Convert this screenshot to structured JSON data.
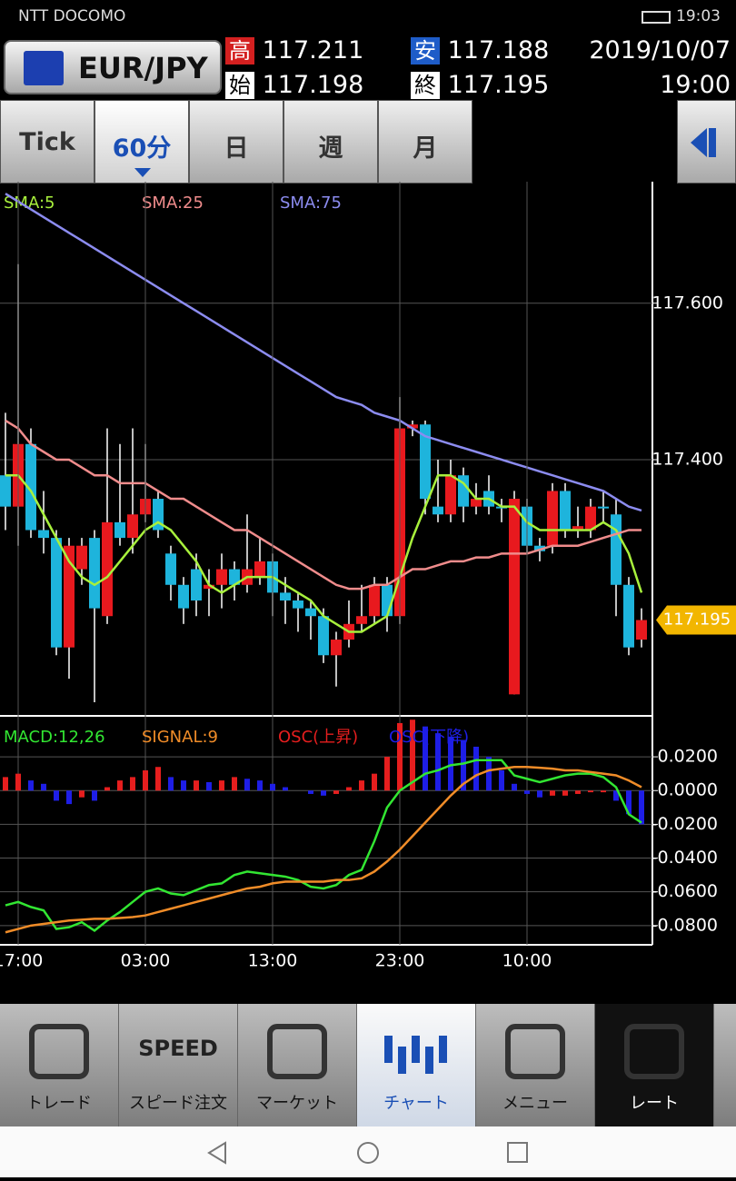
{
  "status_bar": {
    "carrier": "NTT DOCOMO",
    "time": "19:03"
  },
  "header": {
    "symbol": "EUR/JPY",
    "high_label": "高",
    "high": "117.211",
    "low_label": "安",
    "low": "117.188",
    "open_label": "始",
    "open": "117.198",
    "close_label": "終",
    "close": "117.195",
    "date": "2019/10/07",
    "time": "19:00"
  },
  "tabs": [
    {
      "label": "Tick"
    },
    {
      "label": "60分",
      "active": true
    },
    {
      "label": "日"
    },
    {
      "label": "週"
    },
    {
      "label": "月"
    }
  ],
  "chart_data": [
    {
      "type": "candlestick",
      "up_color": "#e8191e",
      "down_color": "#1eb4dc",
      "ylim": [
        117.076,
        117.753
      ],
      "yticks": [
        {
          "value": 117.6,
          "label": "117.600"
        },
        {
          "value": 117.4,
          "label": "117.400"
        }
      ],
      "current_price": 117.195,
      "current_price_label": "117.195",
      "open": [
        117.38,
        117.34,
        117.42,
        117.31,
        117.3,
        117.16,
        117.26,
        117.3,
        117.2,
        117.32,
        117.3,
        117.33,
        117.35,
        117.28,
        117.24,
        117.26,
        117.235,
        117.24,
        117.26,
        117.24,
        117.25,
        117.27,
        117.23,
        117.22,
        117.21,
        117.2,
        117.15,
        117.17,
        117.19,
        117.2,
        117.24,
        117.2,
        117.44,
        117.445,
        117.34,
        117.33,
        117.38,
        117.34,
        117.36,
        117.34,
        117.1,
        117.34,
        117.29,
        117.29,
        117.36,
        117.31,
        117.31,
        117.34,
        117.33,
        117.24,
        117.17
      ],
      "high": [
        117.46,
        117.65,
        117.44,
        117.36,
        117.31,
        117.3,
        117.3,
        117.31,
        117.44,
        117.42,
        117.44,
        117.42,
        117.36,
        117.29,
        117.25,
        117.28,
        117.26,
        117.28,
        117.27,
        117.33,
        117.3,
        117.28,
        117.25,
        117.23,
        117.22,
        117.21,
        117.18,
        117.22,
        117.24,
        117.25,
        117.25,
        117.48,
        117.45,
        117.45,
        117.4,
        117.4,
        117.39,
        117.37,
        117.38,
        117.35,
        117.36,
        117.35,
        117.3,
        117.37,
        117.37,
        117.34,
        117.35,
        117.36,
        117.35,
        117.25,
        117.21
      ],
      "low": [
        117.31,
        117.29,
        117.3,
        117.28,
        117.15,
        117.12,
        117.24,
        117.09,
        117.19,
        117.29,
        117.28,
        117.32,
        117.3,
        117.22,
        117.19,
        117.2,
        117.2,
        117.21,
        117.22,
        117.23,
        117.24,
        117.2,
        117.19,
        117.18,
        117.17,
        117.14,
        117.11,
        117.16,
        117.18,
        117.19,
        117.18,
        117.19,
        117.43,
        117.33,
        117.32,
        117.32,
        117.32,
        117.33,
        117.33,
        117.32,
        117.1,
        117.28,
        117.27,
        117.28,
        117.3,
        117.3,
        117.3,
        117.32,
        117.2,
        117.15,
        117.16
      ],
      "close": [
        117.34,
        117.42,
        117.31,
        117.3,
        117.16,
        117.29,
        117.29,
        117.21,
        117.32,
        117.3,
        117.33,
        117.35,
        117.31,
        117.24,
        117.21,
        117.22,
        117.24,
        117.26,
        117.24,
        117.26,
        117.27,
        117.23,
        117.22,
        117.21,
        117.2,
        117.15,
        117.17,
        117.19,
        117.2,
        117.24,
        117.2,
        117.44,
        117.445,
        117.35,
        117.33,
        117.38,
        117.34,
        117.35,
        117.34,
        117.338,
        117.35,
        117.29,
        117.283,
        117.36,
        117.31,
        117.315,
        117.34,
        117.338,
        117.24,
        117.16,
        117.195
      ],
      "series": [
        {
          "name": "SMA:5",
          "color": "#a8f03c",
          "values": [
            117.38,
            117.38,
            117.36,
            117.33,
            117.3,
            117.27,
            117.25,
            117.24,
            117.25,
            117.27,
            117.29,
            117.31,
            117.32,
            117.31,
            117.29,
            117.27,
            117.24,
            117.23,
            117.24,
            117.25,
            117.25,
            117.25,
            117.24,
            117.23,
            117.22,
            117.2,
            117.19,
            117.18,
            117.18,
            117.19,
            117.2,
            117.25,
            117.3,
            117.34,
            117.38,
            117.38,
            117.37,
            117.35,
            117.35,
            117.34,
            117.34,
            117.32,
            117.31,
            117.31,
            117.31,
            117.31,
            117.31,
            117.32,
            117.31,
            117.28,
            117.23
          ]
        },
        {
          "name": "SMA:25",
          "color": "#f08c8c",
          "values": [
            117.45,
            117.44,
            117.42,
            117.41,
            117.4,
            117.4,
            117.39,
            117.38,
            117.38,
            117.37,
            117.37,
            117.37,
            117.36,
            117.35,
            117.35,
            117.34,
            117.33,
            117.32,
            117.31,
            117.31,
            117.3,
            117.29,
            117.28,
            117.27,
            117.26,
            117.25,
            117.24,
            117.235,
            117.235,
            117.24,
            117.24,
            117.25,
            117.26,
            117.26,
            117.265,
            117.27,
            117.27,
            117.275,
            117.275,
            117.28,
            117.28,
            117.28,
            117.285,
            117.29,
            117.29,
            117.29,
            117.295,
            117.3,
            117.305,
            117.31,
            117.31
          ]
        },
        {
          "name": "SMA:75",
          "color": "#8c8cf0",
          "values": [
            117.74,
            117.73,
            117.72,
            117.71,
            117.7,
            117.69,
            117.68,
            117.67,
            117.66,
            117.65,
            117.64,
            117.63,
            117.62,
            117.61,
            117.6,
            117.59,
            117.58,
            117.57,
            117.56,
            117.55,
            117.54,
            117.53,
            117.52,
            117.51,
            117.5,
            117.49,
            117.48,
            117.475,
            117.47,
            117.46,
            117.455,
            117.45,
            117.44,
            117.43,
            117.425,
            117.42,
            117.415,
            117.41,
            117.405,
            117.4,
            117.395,
            117.39,
            117.385,
            117.38,
            117.375,
            117.37,
            117.365,
            117.36,
            117.35,
            117.34,
            117.335
          ]
        }
      ]
    },
    {
      "type": "macd",
      "ylim": [
        -0.0914,
        0.0432
      ],
      "yticks": [
        {
          "value": 0.02,
          "label": "0.0200"
        },
        {
          "value": 0,
          "label": "0.0000"
        },
        {
          "value": -0.02,
          "label": "-0.0200"
        },
        {
          "value": -0.04,
          "label": "-0.0400"
        },
        {
          "value": -0.06,
          "label": "-0.0600"
        },
        {
          "value": -0.08,
          "label": "-0.0800"
        }
      ],
      "categories": [
        null,
        "17:00",
        null,
        null,
        null,
        null,
        null,
        null,
        null,
        null,
        null,
        "03:00",
        null,
        null,
        null,
        null,
        null,
        null,
        null,
        null,
        null,
        "13:00",
        null,
        null,
        null,
        null,
        null,
        null,
        null,
        null,
        null,
        "23:00",
        null,
        null,
        null,
        null,
        null,
        null,
        null,
        null,
        null,
        "10:00",
        null,
        null,
        null,
        null,
        null,
        null,
        null,
        null,
        null
      ],
      "series": [
        {
          "name": "MACD:12,26",
          "color": "#32e632",
          "values": [
            -0.068,
            -0.066,
            -0.069,
            -0.071,
            -0.082,
            -0.081,
            -0.078,
            -0.083,
            -0.077,
            -0.072,
            -0.066,
            -0.06,
            -0.058,
            -0.061,
            -0.062,
            -0.059,
            -0.056,
            -0.055,
            -0.05,
            -0.048,
            -0.049,
            -0.05,
            -0.051,
            -0.053,
            -0.057,
            -0.058,
            -0.056,
            -0.05,
            -0.047,
            -0.03,
            -0.01,
            0,
            0.005,
            0.01,
            0.012,
            0.015,
            0.016,
            0.018,
            0.018,
            0.018,
            0.009,
            0.007,
            0.005,
            0.007,
            0.009,
            0.01,
            0.01,
            0.008,
            0.002,
            -0.014,
            -0.019
          ]
        },
        {
          "name": "SIGNAL:9",
          "color": "#f08c28",
          "values": [
            -0.084,
            -0.082,
            -0.08,
            -0.079,
            -0.078,
            -0.077,
            -0.0765,
            -0.076,
            -0.076,
            -0.0755,
            -0.075,
            -0.074,
            -0.072,
            -0.07,
            -0.068,
            -0.066,
            -0.064,
            -0.062,
            -0.06,
            -0.058,
            -0.057,
            -0.055,
            -0.054,
            -0.054,
            -0.054,
            -0.054,
            -0.053,
            -0.053,
            -0.052,
            -0.048,
            -0.042,
            -0.035,
            -0.027,
            -0.019,
            -0.011,
            -0.003,
            0.004,
            0.009,
            0.012,
            0.013,
            0.014,
            0.014,
            0.0135,
            0.013,
            0.012,
            0.012,
            0.011,
            0.01,
            0.009,
            0.006,
            0.002
          ]
        },
        {
          "name": "OSC",
          "name_up": "OSC(上昇)",
          "name_down": "OSC(下降)",
          "color_up": "#e61e1e",
          "color_down": "#1e1ee6",
          "values": [
            0.008,
            0.01,
            0.006,
            0.004,
            -0.006,
            -0.008,
            -0.004,
            -0.006,
            0.002,
            0.006,
            0.008,
            0.012,
            0.014,
            0.008,
            0.006,
            0.006,
            0.005,
            0.006,
            0.008,
            0.007,
            0.006,
            0.004,
            0.002,
            0,
            -0.002,
            -0.003,
            -0.002,
            0.002,
            0.006,
            0.01,
            0.02,
            0.04,
            0.042,
            0.038,
            0.034,
            0.032,
            0.03,
            0.026,
            0.02,
            0.012,
            0.004,
            -0.002,
            -0.004,
            -0.003,
            -0.003,
            -0.002,
            -0.001,
            -0.001,
            -0.006,
            -0.014,
            -0.02
          ]
        }
      ]
    }
  ],
  "nav": [
    {
      "label": "トレード"
    },
    {
      "label": "スピード注文",
      "icon_text": "SPEED"
    },
    {
      "label": "マーケット"
    },
    {
      "label": "チャート",
      "active": true
    },
    {
      "label": "メニュー"
    },
    {
      "label": "レート"
    }
  ]
}
